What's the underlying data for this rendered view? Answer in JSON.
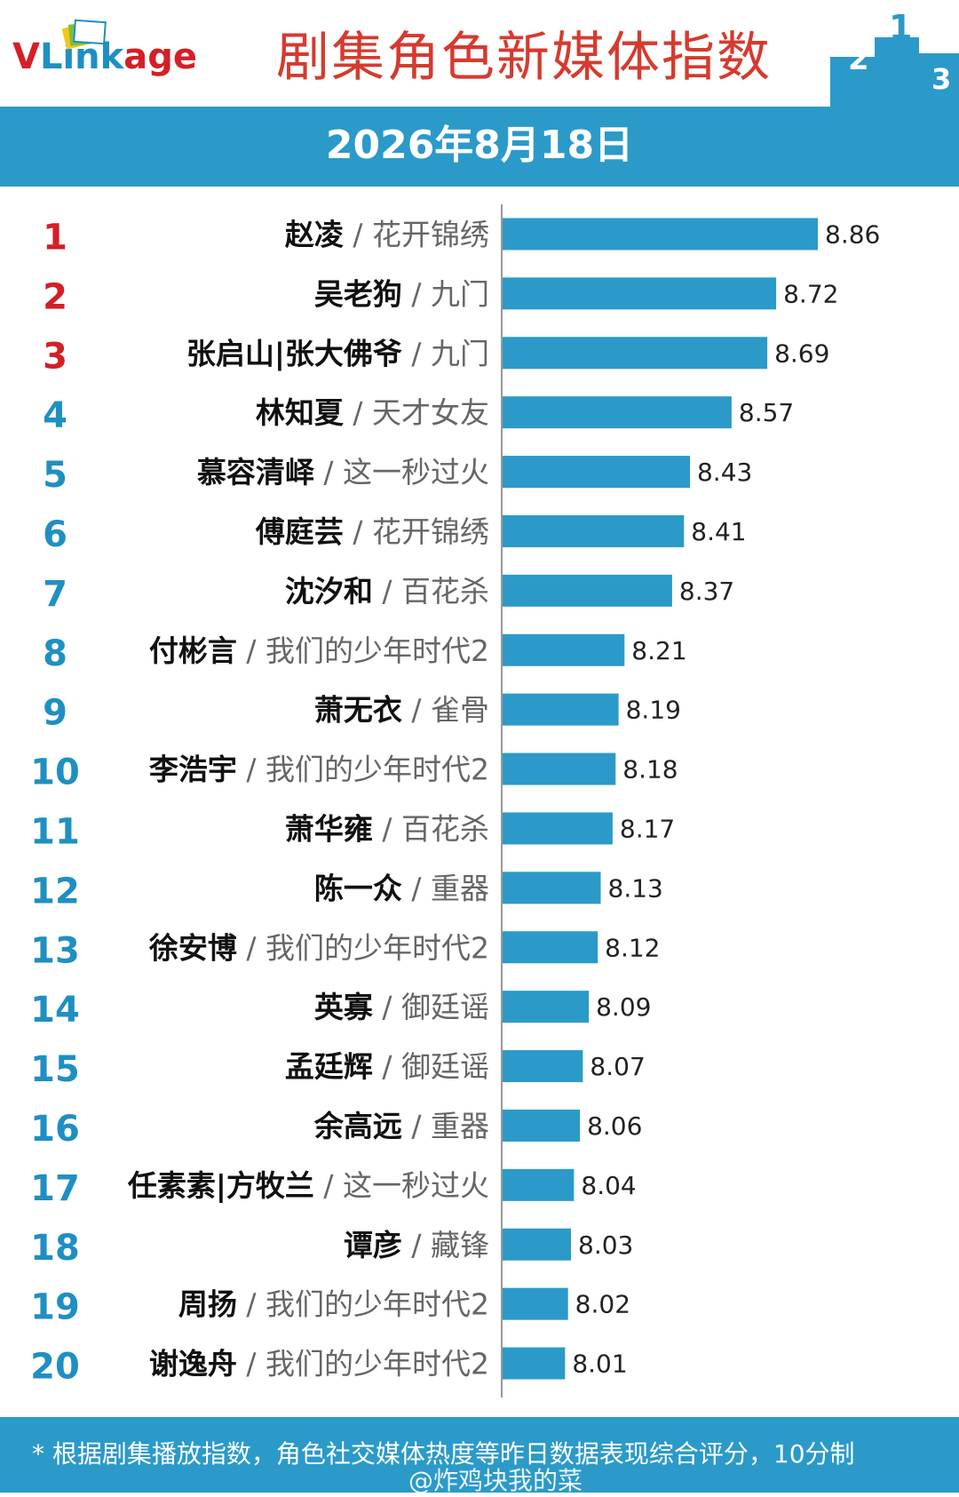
{
  "brand": {
    "logo_v": "V",
    "logo_link": "Link",
    "logo_age": "age"
  },
  "title": "剧集角色新媒体指数",
  "date": "2026年8月18日",
  "footnote": "* 根据剧集播放指数，角色社交媒体热度等昨日数据表现综合评分，10分制",
  "watermark": "@炸鸡块我的菜",
  "podium_numbers": [
    "2",
    "1",
    "3"
  ],
  "colors": {
    "accent": "#2b9ac8",
    "rank_top": "#d41f26",
    "rank_other": "#1f8fc2",
    "bar": "#2b9ac8",
    "title": "#d63a2f"
  },
  "chart_data": {
    "type": "bar",
    "orientation": "horizontal",
    "xlim": [
      7.8,
      8.9
    ],
    "rows": [
      {
        "rank": "1",
        "name": "赵凌",
        "drama": "花开锦绣",
        "value": 8.86
      },
      {
        "rank": "2",
        "name": "吴老狗",
        "drama": "九门",
        "value": 8.72
      },
      {
        "rank": "3",
        "name": "张启山|张大佛爷",
        "drama": "九门",
        "value": 8.69
      },
      {
        "rank": "4",
        "name": "林知夏",
        "drama": "天才女友",
        "value": 8.57
      },
      {
        "rank": "5",
        "name": "慕容清峄",
        "drama": "这一秒过火",
        "value": 8.43
      },
      {
        "rank": "6",
        "name": "傅庭芸",
        "drama": "花开锦绣",
        "value": 8.41
      },
      {
        "rank": "7",
        "name": "沈汐和",
        "drama": "百花杀",
        "value": 8.37
      },
      {
        "rank": "8",
        "name": "付彬言",
        "drama": "我们的少年时代2",
        "value": 8.21
      },
      {
        "rank": "9",
        "name": "萧无衣",
        "drama": "雀骨",
        "value": 8.19
      },
      {
        "rank": "10",
        "name": "李浩宇",
        "drama": "我们的少年时代2",
        "value": 8.18
      },
      {
        "rank": "11",
        "name": "萧华雍",
        "drama": "百花杀",
        "value": 8.17
      },
      {
        "rank": "12",
        "name": "陈一众",
        "drama": "重器",
        "value": 8.13
      },
      {
        "rank": "13",
        "name": "徐安博",
        "drama": "我们的少年时代2",
        "value": 8.12
      },
      {
        "rank": "14",
        "name": "英寡",
        "drama": "御廷谣",
        "value": 8.09
      },
      {
        "rank": "15",
        "name": "孟廷辉",
        "drama": "御廷谣",
        "value": 8.07
      },
      {
        "rank": "16",
        "name": "余高远",
        "drama": "重器",
        "value": 8.06
      },
      {
        "rank": "17",
        "name": "任素素|方牧兰",
        "drama": "这一秒过火",
        "value": 8.04
      },
      {
        "rank": "18",
        "name": "谭彦",
        "drama": "藏锋",
        "value": 8.03
      },
      {
        "rank": "19",
        "name": "周扬",
        "drama": "我们的少年时代2",
        "value": 8.02
      },
      {
        "rank": "20",
        "name": "谢逸舟",
        "drama": "我们的少年时代2",
        "value": 8.01
      }
    ]
  }
}
